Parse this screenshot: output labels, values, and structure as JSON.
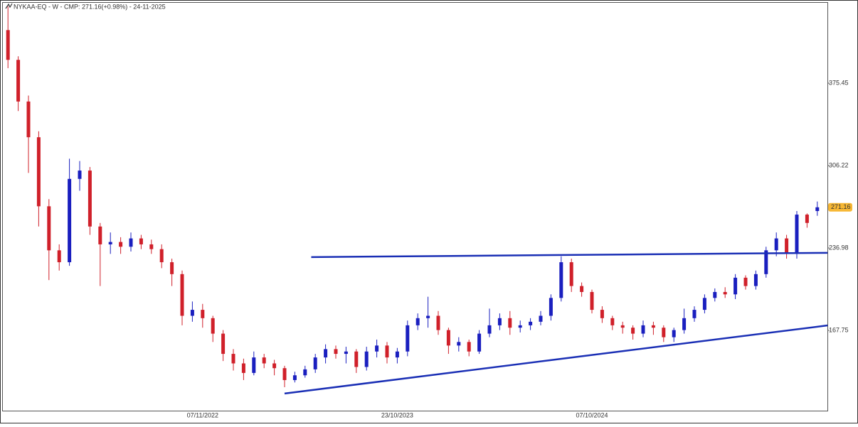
{
  "chart_data": {
    "type": "candlestick",
    "title": "NYKAA-EQ - W - CMP: 271.16(+0.98%) - 24-11-2025",
    "categories": [
      null,
      null,
      null,
      null,
      null,
      null,
      null,
      null,
      null,
      null,
      null,
      null,
      null,
      null,
      null,
      null,
      null,
      null,
      null,
      "07/11/2022",
      null,
      null,
      null,
      null,
      null,
      null,
      null,
      null,
      null,
      null,
      null,
      null,
      null,
      null,
      null,
      null,
      null,
      null,
      "23/10/2023",
      null,
      null,
      null,
      null,
      null,
      null,
      null,
      null,
      null,
      null,
      null,
      null,
      null,
      null,
      null,
      null,
      null,
      null,
      "07/10/2024",
      null,
      null,
      null,
      null,
      null,
      null,
      null,
      null,
      null,
      null,
      null,
      null,
      null,
      null,
      null,
      null,
      null,
      null,
      null,
      null,
      null,
      null
    ],
    "series": [
      {
        "open": [
          420,
          395,
          360,
          330,
          272,
          235,
          225,
          295,
          302,
          255,
          240,
          242,
          238,
          245,
          240,
          236,
          225,
          215,
          180,
          185,
          178,
          165,
          148,
          140,
          132,
          145,
          140,
          136,
          126,
          130,
          135,
          145,
          152,
          148,
          150,
          137,
          150,
          155,
          145,
          150,
          172,
          178,
          180,
          168,
          155,
          158,
          150,
          165,
          172,
          178,
          170,
          172,
          175,
          180,
          195,
          225,
          205,
          200,
          185,
          178,
          172,
          170,
          165,
          172,
          170,
          162,
          168,
          178,
          185,
          195,
          200,
          198,
          212,
          205,
          215,
          235,
          245,
          232,
          265,
          268
        ],
        "high": [
          440,
          398,
          365,
          335,
          278,
          240,
          312,
          310,
          305,
          258,
          250,
          246,
          250,
          248,
          244,
          240,
          228,
          218,
          192,
          190,
          180,
          168,
          152,
          144,
          150,
          148,
          143,
          138,
          133,
          138,
          148,
          156,
          155,
          154,
          152,
          154,
          160,
          158,
          153,
          176,
          182,
          196,
          184,
          170,
          162,
          160,
          168,
          186,
          182,
          184,
          176,
          178,
          184,
          198,
          230,
          228,
          208,
          202,
          188,
          180,
          175,
          172,
          176,
          175,
          172,
          170,
          186,
          188,
          198,
          203,
          204,
          215,
          214,
          218,
          238,
          250,
          248,
          268,
          266,
          276
        ],
        "low": [
          388,
          352,
          300,
          255,
          210,
          218,
          222,
          285,
          248,
          205,
          232,
          232,
          234,
          236,
          232,
          220,
          205,
          172,
          175,
          170,
          158,
          142,
          134,
          126,
          130,
          136,
          130,
          120,
          124,
          128,
          132,
          140,
          144,
          140,
          132,
          134,
          145,
          140,
          140,
          146,
          168,
          170,
          164,
          148,
          150,
          146,
          148,
          162,
          168,
          164,
          166,
          168,
          172,
          176,
          192,
          200,
          196,
          182,
          174,
          168,
          165,
          160,
          162,
          164,
          158,
          158,
          165,
          175,
          182,
          192,
          195,
          194,
          202,
          202,
          212,
          230,
          228,
          228,
          254,
          264
        ],
        "close": [
          395,
          360,
          330,
          272,
          235,
          225,
          295,
          302,
          255,
          240,
          242,
          238,
          245,
          240,
          236,
          225,
          215,
          180,
          185,
          178,
          165,
          148,
          140,
          132,
          145,
          140,
          136,
          126,
          130,
          135,
          145,
          152,
          148,
          150,
          137,
          150,
          155,
          145,
          150,
          172,
          178,
          180,
          168,
          155,
          158,
          150,
          165,
          172,
          178,
          170,
          172,
          175,
          180,
          195,
          225,
          205,
          200,
          185,
          178,
          172,
          170,
          165,
          172,
          170,
          162,
          168,
          178,
          185,
          195,
          200,
          198,
          212,
          205,
          215,
          235,
          245,
          232,
          265,
          258,
          271.16
        ]
      }
    ],
    "up_color": "#1a1fbf",
    "down_color": "#d0202a",
    "trendlines": [
      {
        "x": [
          29.6,
          80
        ],
        "y": [
          229.3,
          232.9
        ],
        "color": "#1a2fb5"
      },
      {
        "x": [
          27,
          80
        ],
        "y": [
          114.7,
          171.9
        ],
        "color": "#1a2fb5"
      }
    ],
    "ylim": [
      100.3,
      442.9
    ],
    "yticks": [
      167.75,
      236.98,
      306.22,
      375.45
    ],
    "last_price_color": "#f7b733"
  }
}
